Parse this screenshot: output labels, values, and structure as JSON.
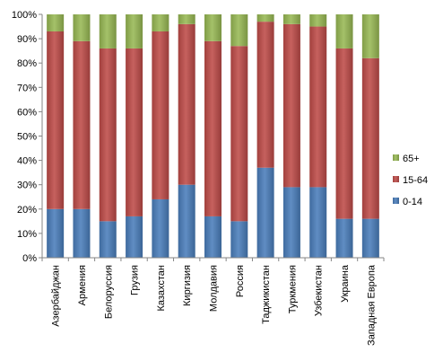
{
  "chart_data": {
    "type": "bar",
    "stacked": true,
    "percent_stacked": true,
    "categories": [
      "Азербайджан",
      "Армения",
      "Белоруссия",
      "Грузия",
      "Казахстан",
      "Киргизия",
      "Молдавия",
      "Россия",
      "Таджикистан",
      "Туркмения",
      "Узбекистан",
      "Украина",
      "Западная Европа"
    ],
    "series": [
      {
        "name": "0-14",
        "color": "#4a7ebb",
        "values": [
          20,
          20,
          15,
          17,
          24,
          30,
          17,
          15,
          37,
          29,
          29,
          16,
          16
        ]
      },
      {
        "name": "15-64",
        "color": "#be4b48",
        "values": [
          73,
          69,
          71,
          69,
          69,
          66,
          72,
          72,
          60,
          67,
          66,
          70,
          66
        ]
      },
      {
        "name": "65+",
        "color": "#98b954",
        "values": [
          7,
          11,
          14,
          14,
          7,
          4,
          11,
          13,
          3,
          4,
          5,
          14,
          18
        ]
      }
    ],
    "y_ticks": [
      "0%",
      "10%",
      "20%",
      "30%",
      "40%",
      "50%",
      "60%",
      "70%",
      "80%",
      "90%",
      "100%"
    ],
    "ylim": [
      0,
      100
    ],
    "legend": [
      "65+",
      "15-64",
      "0-14"
    ],
    "legend_position": "right",
    "grid": false,
    "title": "",
    "xlabel": "",
    "ylabel": ""
  }
}
